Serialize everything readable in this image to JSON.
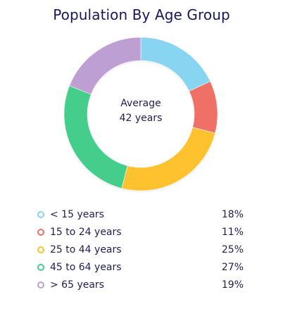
{
  "chart_data": {
    "type": "pie",
    "variant": "donut",
    "title": "Population By Age Group",
    "center_label": "Average",
    "center_value": "42 years",
    "categories": [
      "< 15 years",
      "15 to 24 years",
      "25 to 44 years",
      "45 to 64 years",
      "> 65 years"
    ],
    "values": [
      18,
      11,
      25,
      27,
      19
    ],
    "value_labels": [
      "18%",
      "11%",
      "25%",
      "27%",
      "19%"
    ],
    "colors": [
      "#87d5f0",
      "#ee6f66",
      "#fec22f",
      "#44cd8c",
      "#be9fd4"
    ],
    "legend_position": "bottom"
  }
}
